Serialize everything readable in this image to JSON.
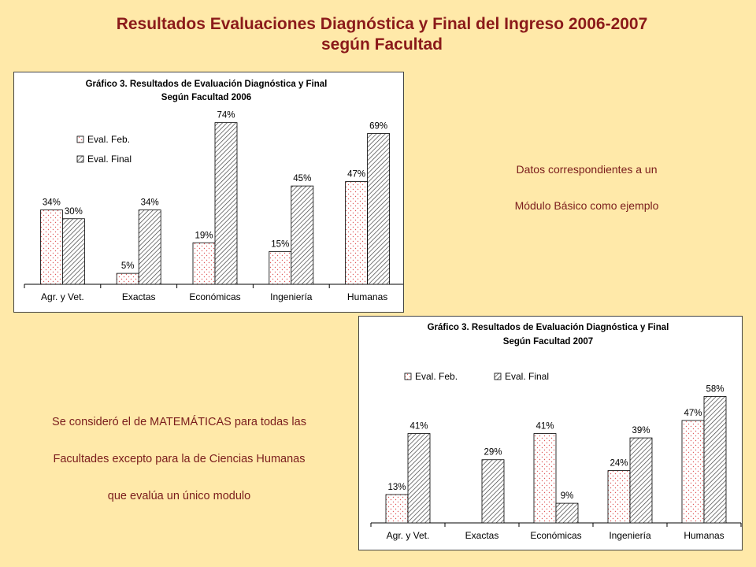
{
  "page": {
    "title_line1": "Resultados Evaluaciones Diagnóstica y Final del Ingreso 2006-2007",
    "title_line2": "según Facultad",
    "note_right": [
      "Datos correspondientes a un",
      "Módulo Básico como ejemplo"
    ],
    "note_left": [
      "Se consideró el de MATEMÁTICAS para todas las",
      "Facultades excepto para la de Ciencias Humanas",
      "que evalúa un único modulo"
    ]
  },
  "colors": {
    "background": "#ffe9a9",
    "title": "#8b1a1a",
    "note_text": "#7a1c1c",
    "feb_pattern": "#e05a5a",
    "final_pattern": "#333333"
  },
  "chart_data": [
    {
      "type": "bar",
      "title": "Gráfico 3. Resultados de Evaluación Diagnóstica y Final",
      "subtitle": "Según Facultad 2006",
      "categories": [
        "Agr. y Vet.",
        "Exactas",
        "Económicas",
        "Ingeniería",
        "Humanas"
      ],
      "series": [
        {
          "name": "Eval. Feb.",
          "values": [
            34,
            5,
            19,
            15,
            47
          ],
          "labels": [
            "34%",
            "5%",
            "19%",
            "15%",
            "47%"
          ]
        },
        {
          "name": "Eval. Final",
          "values": [
            30,
            34,
            74,
            45,
            69
          ],
          "labels": [
            "30%",
            "34%",
            "74%",
            "45%",
            "69%"
          ]
        }
      ],
      "ylim": [
        0,
        80
      ],
      "grid": false,
      "legend": "top-left"
    },
    {
      "type": "bar",
      "title": "Gráfico 3. Resultados de Evaluación Diagnóstica y Final",
      "subtitle": "Según Facultad 2007",
      "categories": [
        "Agr. y Vet.",
        "Exactas",
        "Económicas",
        "Ingeniería",
        "Humanas"
      ],
      "series": [
        {
          "name": "Eval. Feb.",
          "values": [
            13,
            null,
            41,
            24,
            47
          ],
          "labels": [
            "13%",
            "",
            "41%",
            "24%",
            "47%"
          ]
        },
        {
          "name": "Eval. Final",
          "values": [
            41,
            29,
            9,
            39,
            58
          ],
          "labels": [
            "41%",
            "29%",
            "9%",
            "39%",
            "58%"
          ]
        }
      ],
      "ylim": [
        0,
        65
      ],
      "grid": false,
      "legend": "top-left, horizontal"
    }
  ]
}
